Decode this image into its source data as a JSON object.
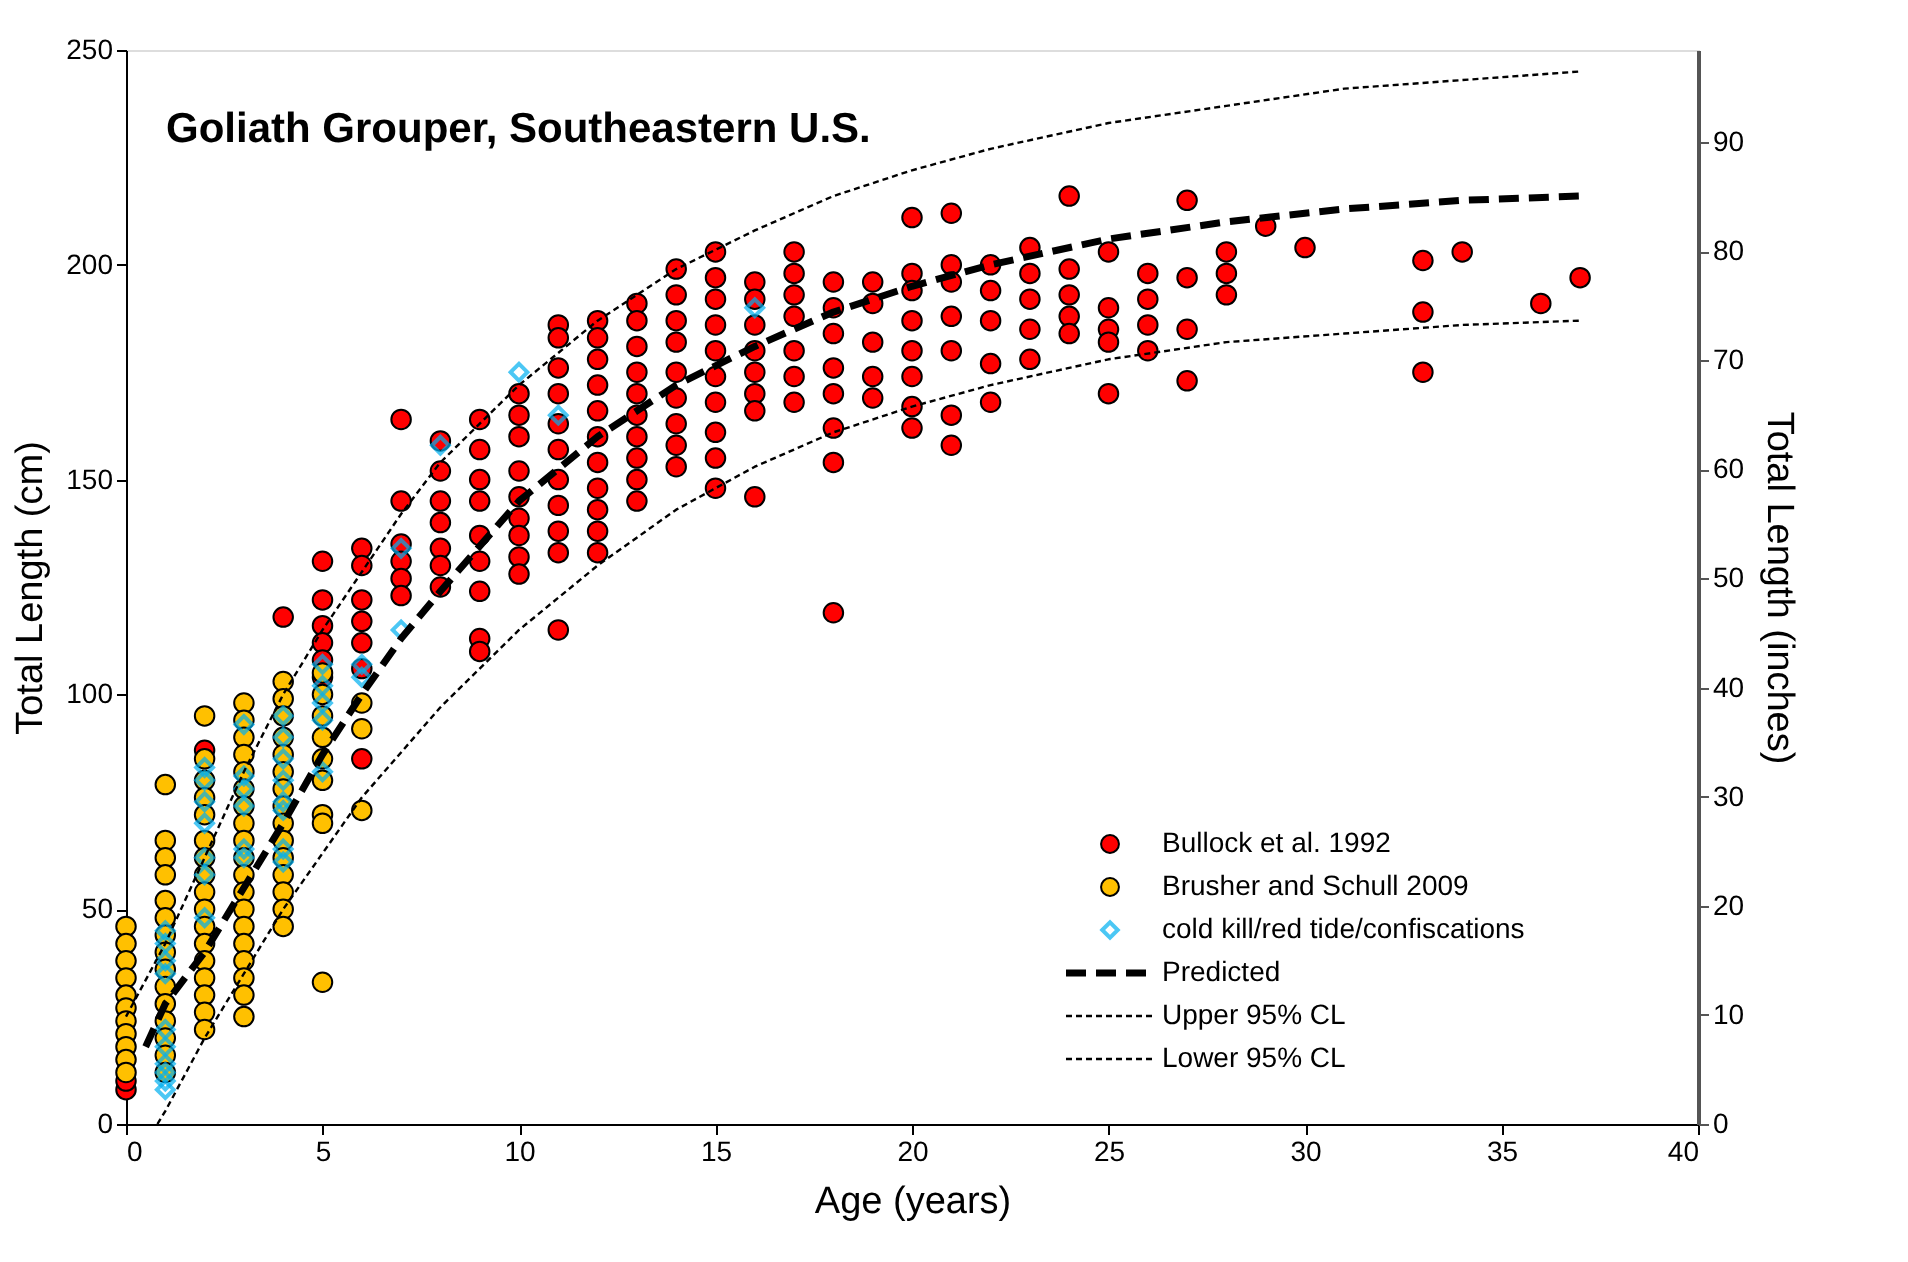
{
  "chart_data": {
    "type": "scatter",
    "title": "Goliath Grouper, Southeastern U.S.",
    "xlabel": "Age (years)",
    "ylabel": "Total Length (cm)",
    "y2label": "Total Length (inches)",
    "xlim": [
      0,
      40
    ],
    "xticks": [
      0,
      5,
      10,
      15,
      20,
      25,
      30,
      35,
      40
    ],
    "ylim": [
      0,
      250
    ],
    "yticks": [
      0,
      50,
      100,
      150,
      200,
      250
    ],
    "y2lim": [
      0,
      98.43
    ],
    "y2ticks": [
      0,
      10,
      20,
      30,
      40,
      50,
      60,
      70,
      80,
      90
    ],
    "grid": false,
    "legend": "bottom right",
    "series": [
      {
        "name": "Bullock et al. 1992",
        "marker": "circle",
        "color": "#ff0000",
        "x": [
          0,
          0,
          2,
          4,
          5,
          5,
          5,
          5,
          5,
          5,
          6,
          6,
          6,
          6,
          6,
          6,
          6,
          7,
          7,
          7,
          7,
          7,
          7,
          8,
          8,
          8,
          8,
          8,
          8,
          8,
          9,
          9,
          9,
          9,
          9,
          9,
          9,
          9,
          9,
          10,
          10,
          10,
          10,
          10,
          10,
          10,
          10,
          10,
          11,
          11,
          11,
          11,
          11,
          11,
          11,
          11,
          11,
          11,
          11,
          12,
          12,
          12,
          12,
          12,
          12,
          12,
          12,
          12,
          12,
          12,
          13,
          13,
          13,
          13,
          13,
          13,
          13,
          13,
          13,
          13,
          14,
          14,
          14,
          14,
          14,
          14,
          14,
          14,
          14,
          15,
          15,
          15,
          15,
          15,
          15,
          15,
          15,
          15,
          15,
          16,
          16,
          16,
          16,
          16,
          16,
          16,
          16,
          17,
          17,
          17,
          17,
          17,
          17,
          17,
          18,
          18,
          18,
          18,
          18,
          18,
          18,
          18,
          19,
          19,
          19,
          19,
          19,
          20,
          20,
          20,
          20,
          20,
          20,
          20,
          20,
          21,
          21,
          21,
          21,
          21,
          21,
          21,
          22,
          22,
          22,
          22,
          22,
          23,
          23,
          23,
          23,
          23,
          24,
          24,
          24,
          24,
          24,
          25,
          25,
          25,
          25,
          25,
          26,
          26,
          26,
          26,
          27,
          27,
          27,
          27,
          28,
          28,
          28,
          29,
          30,
          33,
          33,
          33,
          34,
          36,
          37
        ],
        "values": [
          8,
          10,
          87,
          118,
          131,
          122,
          116,
          112,
          108,
          104,
          134,
          130,
          122,
          117,
          112,
          106,
          85,
          164,
          145,
          135,
          131,
          127,
          123,
          159,
          152,
          145,
          140,
          134,
          130,
          125,
          164,
          157,
          150,
          145,
          137,
          131,
          124,
          113,
          110,
          170,
          165,
          160,
          152,
          146,
          141,
          137,
          132,
          128,
          186,
          183,
          176,
          170,
          163,
          157,
          150,
          144,
          138,
          133,
          115,
          187,
          183,
          178,
          172,
          166,
          160,
          154,
          148,
          143,
          138,
          133,
          191,
          187,
          181,
          175,
          170,
          165,
          160,
          155,
          150,
          145,
          199,
          193,
          187,
          182,
          175,
          169,
          163,
          158,
          153,
          203,
          197,
          192,
          186,
          180,
          174,
          168,
          161,
          155,
          148,
          196,
          192,
          186,
          180,
          175,
          170,
          166,
          146,
          203,
          198,
          193,
          188,
          180,
          174,
          168,
          196,
          190,
          184,
          176,
          170,
          162,
          154,
          119,
          196,
          191,
          182,
          174,
          169,
          211,
          198,
          194,
          187,
          180,
          174,
          167,
          162,
          212,
          200,
          196,
          188,
          180,
          165,
          158,
          200,
          194,
          187,
          177,
          168,
          204,
          198,
          192,
          185,
          178,
          216,
          199,
          193,
          188,
          184,
          203,
          190,
          185,
          182,
          170,
          198,
          192,
          186,
          180,
          215,
          197,
          185,
          173,
          203,
          198,
          193,
          209,
          204,
          201,
          189,
          175,
          203,
          191,
          197
        ]
      },
      {
        "name": "Brusher and Schull 2009",
        "marker": "circle",
        "color": "#ffc000",
        "x": [
          0,
          0,
          0,
          0,
          0,
          0,
          0,
          0,
          0,
          0,
          0,
          1,
          1,
          1,
          1,
          1,
          1,
          1,
          1,
          1,
          1,
          1,
          1,
          1,
          1,
          1,
          2,
          2,
          2,
          2,
          2,
          2,
          2,
          2,
          2,
          2,
          2,
          2,
          2,
          2,
          2,
          2,
          2,
          3,
          3,
          3,
          3,
          3,
          3,
          3,
          3,
          3,
          3,
          3,
          3,
          3,
          3,
          3,
          3,
          3,
          3,
          3,
          4,
          4,
          4,
          4,
          4,
          4,
          4,
          4,
          4,
          4,
          4,
          4,
          4,
          4,
          4,
          5,
          5,
          5,
          5,
          5,
          5,
          5,
          5,
          5,
          6,
          6,
          6
        ],
        "values": [
          46,
          42,
          38,
          34,
          30,
          27,
          24,
          21,
          18,
          15,
          12,
          79,
          66,
          62,
          58,
          52,
          48,
          44,
          40,
          36,
          32,
          28,
          24,
          20,
          16,
          12,
          95,
          85,
          80,
          76,
          72,
          66,
          62,
          58,
          54,
          50,
          46,
          42,
          38,
          34,
          30,
          26,
          22,
          98,
          94,
          90,
          86,
          82,
          78,
          74,
          70,
          66,
          62,
          58,
          54,
          50,
          46,
          42,
          38,
          34,
          30,
          25,
          103,
          99,
          95,
          90,
          86,
          82,
          78,
          74,
          70,
          66,
          62,
          58,
          54,
          50,
          46,
          105,
          100,
          95,
          90,
          85,
          80,
          72,
          70,
          33,
          98,
          92,
          73
        ]
      },
      {
        "name": "cold kill/red tide/confiscations",
        "marker": "diamond",
        "color": "#00b0f0",
        "x": [
          1,
          1,
          1,
          1,
          1,
          1,
          1,
          1,
          1,
          1,
          2,
          2,
          2,
          2,
          2,
          2,
          2,
          3,
          3,
          3,
          3,
          3,
          3,
          4,
          4,
          4,
          4,
          4,
          4,
          4,
          4,
          5,
          5,
          5,
          5,
          5,
          6,
          6,
          7,
          7,
          8,
          10,
          11,
          16
        ],
        "values": [
          45,
          42,
          38,
          35,
          22,
          18,
          14,
          12,
          10,
          8,
          83,
          80,
          75,
          70,
          62,
          58,
          48,
          93,
          81,
          78,
          74,
          64,
          62,
          95,
          90,
          85,
          80,
          75,
          73,
          64,
          61,
          107,
          102,
          98,
          94,
          82,
          107,
          104,
          134,
          115,
          158,
          175,
          165,
          190
        ]
      },
      {
        "name": "Predicted",
        "type": "line",
        "line_style": "dashed",
        "color": "#000000",
        "x": [
          0.5,
          1,
          2,
          3,
          4,
          5,
          6,
          7,
          8,
          10,
          12,
          14,
          16,
          18,
          20,
          22,
          25,
          28,
          31,
          34,
          37
        ],
        "values": [
          18,
          28,
          40,
          55,
          70,
          86,
          100,
          113,
          124,
          145,
          160,
          172,
          181,
          189,
          195,
          200,
          206,
          210,
          213,
          215,
          216
        ]
      },
      {
        "name": "Upper 95% CL",
        "type": "line",
        "line_style": "dotted",
        "color": "#000000",
        "x": [
          0,
          1,
          2,
          3,
          4,
          5,
          7,
          8,
          10,
          12,
          14,
          16,
          18,
          20,
          22,
          25,
          28,
          31,
          34,
          37
        ],
        "values": [
          25,
          42,
          62,
          82,
          100,
          115,
          142,
          154,
          172,
          187,
          199,
          208,
          216,
          222,
          227,
          233,
          237,
          241,
          243,
          245
        ]
      },
      {
        "name": "Lower 95% CL",
        "type": "line",
        "line_style": "dotted",
        "color": "#000000",
        "x": [
          0.8,
          1,
          2,
          3,
          4,
          5,
          6,
          8,
          10,
          12,
          14,
          16,
          18,
          20,
          22,
          25,
          28,
          31,
          34,
          37
        ],
        "values": [
          0,
          3,
          20,
          35,
          50,
          63,
          76,
          97,
          115,
          130,
          143,
          153,
          161,
          167,
          172,
          178,
          182,
          184,
          186,
          187
        ]
      }
    ]
  }
}
